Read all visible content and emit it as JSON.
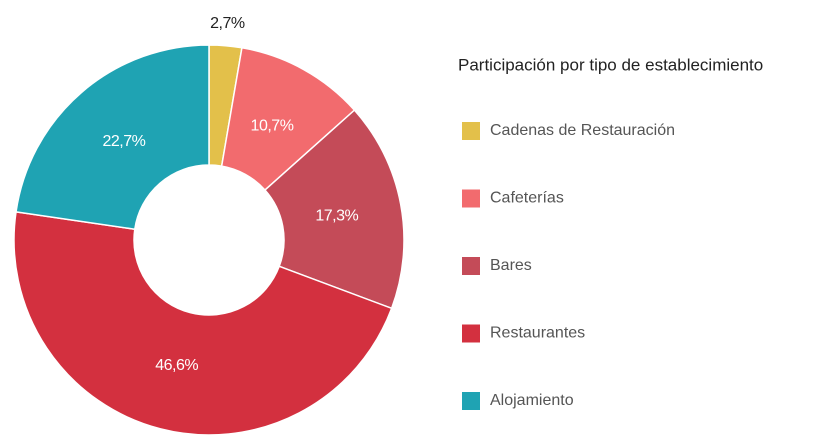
{
  "chart_data": {
    "type": "pie",
    "legend_title": "Participación por tipo de establecimiento",
    "categories": [
      "Cadenas de Restauración",
      "Cafeterías",
      "Bares",
      "Restaurantes",
      "Alojamiento"
    ],
    "values": [
      2.7,
      10.7,
      17.3,
      46.6,
      22.7
    ],
    "value_labels": [
      "2,7%",
      "10,7%",
      "17,3%",
      "46,6%",
      "22,7%"
    ],
    "colors": [
      "#e3c04a",
      "#f26b6e",
      "#c44b58",
      "#d3303f",
      "#1fa3b3"
    ],
    "legend": "right"
  }
}
